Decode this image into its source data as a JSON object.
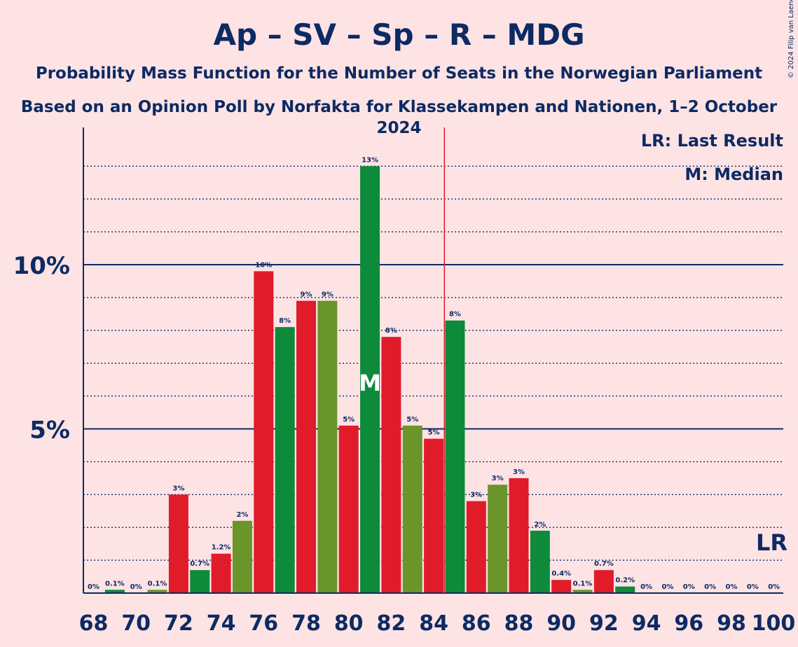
{
  "header": {
    "title": "Ap – SV – Sp – R – MDG",
    "subtitle": "Probability Mass Function for the Number of Seats in the Norwegian Parliament",
    "subtitle2": "Based on an Opinion Poll by Norfakta for Klassekampen and Nationen, 1–2 October 2024",
    "copyright": "© 2024 Filip van Laenen"
  },
  "legend": {
    "last_result": "LR: Last Result",
    "median": "M: Median",
    "lr_marker": "LR",
    "median_marker": "M"
  },
  "colors": {
    "background": "#fde3e4",
    "text": "#0d2a63",
    "palette": [
      "#e01b2a",
      "#0d8a3a",
      "#e01b2a",
      "#6a952a"
    ],
    "last_result_line": "#e01b2a"
  },
  "chart_data": {
    "type": "bar",
    "x": [
      68,
      69,
      70,
      71,
      72,
      73,
      74,
      75,
      76,
      77,
      78,
      79,
      80,
      81,
      82,
      83,
      84,
      85,
      86,
      87,
      88,
      89,
      90,
      91,
      92,
      93,
      94,
      95,
      96,
      97,
      98,
      99,
      100
    ],
    "values": [
      0,
      0.1,
      0,
      0.1,
      3.0,
      0.7,
      1.2,
      2.2,
      9.8,
      8.1,
      8.9,
      8.9,
      5.1,
      13.0,
      7.8,
      5.1,
      4.7,
      8.3,
      2.8,
      3.3,
      3.5,
      1.9,
      0.4,
      0.1,
      0.7,
      0.2,
      0,
      0,
      0,
      0,
      0,
      0,
      0
    ],
    "labels": [
      "0%",
      "0.1%",
      "0%",
      "0.1%",
      "3%",
      "0.7%",
      "1.2%",
      "2%",
      "10%",
      "8%",
      "9%",
      "9%",
      "5%",
      "13%",
      "8%",
      "5%",
      "5%",
      "8%",
      "3%",
      "3%",
      "3%",
      "2%",
      "0.4%",
      "0.1%",
      "0.7%",
      "0.2%",
      "0%",
      "0%",
      "0%",
      "0%",
      "0%",
      "0%",
      "0%"
    ],
    "x_tick_labels": [
      "68",
      "70",
      "72",
      "74",
      "76",
      "78",
      "80",
      "82",
      "84",
      "86",
      "88",
      "90",
      "92",
      "94",
      "96",
      "98",
      "100"
    ],
    "y_tick_labels": [
      {
        "value": 5,
        "label": "5%"
      },
      {
        "value": 10,
        "label": "10%"
      }
    ],
    "ylim": [
      0,
      14.2
    ],
    "median": 81,
    "last_result": 85,
    "grid": "dotted every 1%, solid at 5% and 10%"
  }
}
